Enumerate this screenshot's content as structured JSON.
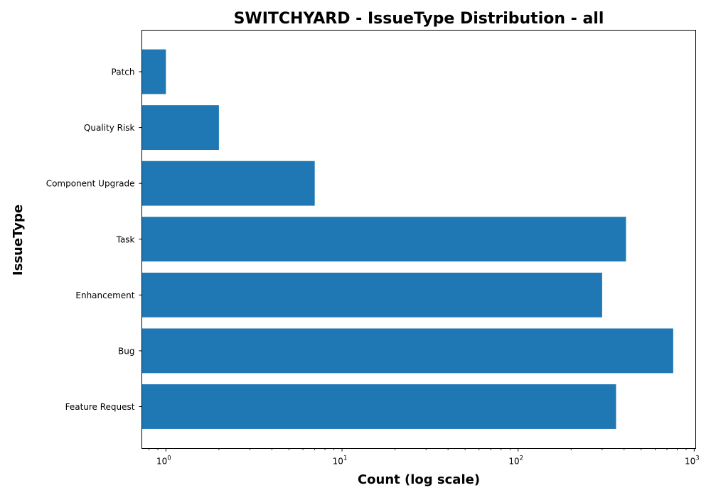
{
  "chart_data": {
    "type": "bar",
    "orientation": "horizontal",
    "title": "SWITCHYARD - IssueType Distribution - all",
    "xlabel": "Count (log scale)",
    "ylabel": "IssueType",
    "x_scale": "log",
    "xlim": [
      0.73,
      1020
    ],
    "x_ticks": [
      {
        "base": "10",
        "exp": "0",
        "value": 1
      },
      {
        "base": "10",
        "exp": "1",
        "value": 10
      },
      {
        "base": "10",
        "exp": "2",
        "value": 100
      },
      {
        "base": "10",
        "exp": "3",
        "value": 1000
      }
    ],
    "categories": [
      "Feature Request",
      "Bug",
      "Enhancement",
      "Task",
      "Component  Upgrade",
      "Quality Risk",
      "Patch"
    ],
    "values": [
      360,
      760,
      300,
      410,
      7,
      2,
      1
    ],
    "bar_color": "#1f77b4",
    "grid": false,
    "legend": "none"
  }
}
